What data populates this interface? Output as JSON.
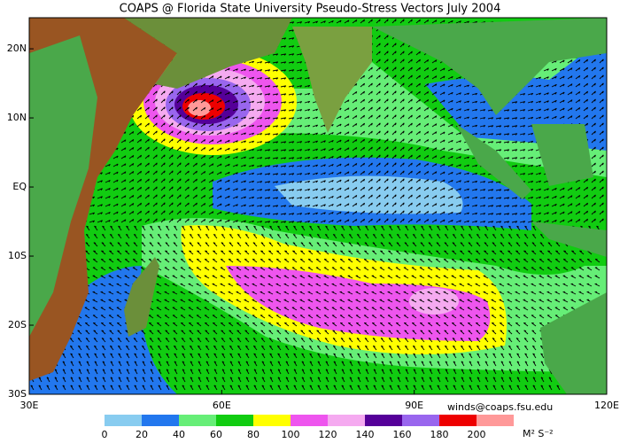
{
  "title": "COAPS @ Florida State University Pseudo-Stress Vectors July 2004",
  "map": {
    "lonlim": [
      30,
      120
    ],
    "latlim": [
      -30,
      24.5
    ],
    "lat_ticks": [
      {
        "value": 20,
        "label": "20N"
      },
      {
        "value": 10,
        "label": "10N"
      },
      {
        "value": 0,
        "label": "EQ"
      },
      {
        "value": -10,
        "label": "10S"
      },
      {
        "value": -20,
        "label": "20S"
      },
      {
        "value": -30,
        "label": "30S"
      }
    ],
    "lon_ticks": [
      {
        "value": 30,
        "label": "30E"
      },
      {
        "value": 60,
        "label": "60E"
      },
      {
        "value": 90,
        "label": "90E"
      },
      {
        "value": 120,
        "label": "120E"
      }
    ]
  },
  "credit": "winds@coaps.fsu.edu",
  "colorbar": {
    "ticks": [
      0,
      20,
      40,
      60,
      80,
      100,
      120,
      140,
      160,
      180,
      200
    ],
    "colors": [
      "#88ccf0",
      "#2277ee",
      "#66ee77",
      "#11cc11",
      "#ffff00",
      "#ee55ee",
      "#f5aaf0",
      "#550099",
      "#9966ee",
      "#ee0000",
      "#ff9999"
    ],
    "unit": "M² S⁻²"
  }
}
